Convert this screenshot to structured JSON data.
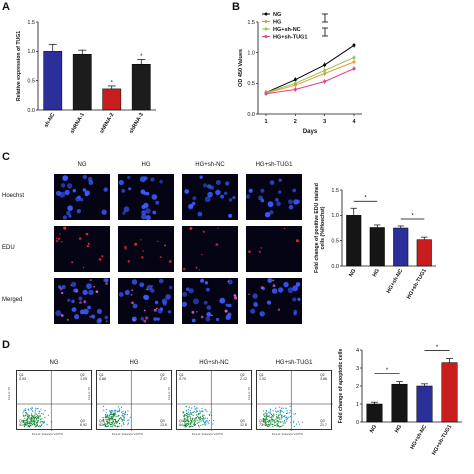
{
  "panels": {
    "a": "A",
    "b": "B",
    "c": "C",
    "d": "D"
  },
  "chart_data": [
    {
      "id": "A",
      "type": "bar",
      "categories": [
        "sh-NC",
        "shRNA-1",
        "shRNA-2",
        "shRNA-3"
      ],
      "values": [
        1.0,
        0.95,
        0.36,
        0.78
      ],
      "errors": [
        0.12,
        0.07,
        0.05,
        0.08
      ],
      "colors": [
        "#2b2f9a",
        "#1c1c1c",
        "#c81d1d",
        "#1c1c1c"
      ],
      "significance": [
        "",
        "",
        "*",
        "*"
      ],
      "title": "",
      "xlabel": "",
      "ylabel": "Relative expression of TUG1",
      "ylim": [
        0,
        1.5
      ],
      "yticks": [
        "0.0",
        "0.5",
        "1.0",
        "1.5"
      ]
    },
    {
      "id": "B",
      "type": "line",
      "categories": [
        "1",
        "2",
        "3",
        "4"
      ],
      "series": [
        {
          "name": "NG",
          "values": [
            0.35,
            0.56,
            0.8,
            1.12
          ],
          "color": "#000000"
        },
        {
          "name": "HG",
          "values": [
            0.34,
            0.47,
            0.66,
            0.85
          ],
          "color": "#e89a33"
        },
        {
          "name": "HG+sh-NC",
          "values": [
            0.35,
            0.5,
            0.71,
            0.92
          ],
          "color": "#8fc34f"
        },
        {
          "name": "HG+sh-TUG1",
          "values": [
            0.33,
            0.4,
            0.53,
            0.74
          ],
          "color": "#e5408b"
        }
      ],
      "xlabel": "Days",
      "ylabel": "OD 450 Values",
      "ylim": [
        0,
        1.5
      ],
      "yticks": [
        "0.0",
        "0.5",
        "1.0",
        "1.5"
      ],
      "legend": "top-left"
    },
    {
      "id": "C",
      "type": "bar",
      "categories": [
        "NG",
        "HG",
        "HG+sh-NC",
        "HG+sh-TUG1"
      ],
      "values": [
        1.0,
        0.76,
        0.75,
        0.52
      ],
      "errors": [
        0.14,
        0.05,
        0.04,
        0.05
      ],
      "colors": [
        "#151515",
        "#151515",
        "#2b2f9a",
        "#c81d1d"
      ],
      "brackets": [
        {
          "from": 0,
          "to": 1,
          "label": "*"
        },
        {
          "from": 2,
          "to": 3,
          "label": "*"
        }
      ],
      "ylabel": "Fold change of positive EDU stained cells (%/Hoechst)",
      "ylim": [
        0,
        1.5
      ],
      "yticks": [
        "0.0",
        "0.5",
        "1.0",
        "1.5"
      ]
    },
    {
      "id": "D",
      "type": "bar",
      "categories": [
        "NG",
        "HG",
        "HG+sh-NC",
        "HG+sh-TUG1"
      ],
      "values": [
        1.0,
        2.1,
        2.0,
        3.3
      ],
      "errors": [
        0.1,
        0.14,
        0.12,
        0.22
      ],
      "colors": [
        "#151515",
        "#151515",
        "#2b2f9a",
        "#c81d1d"
      ],
      "brackets": [
        {
          "from": 0,
          "to": 1,
          "label": "*"
        },
        {
          "from": 2,
          "to": 3,
          "label": "*"
        }
      ],
      "ylabel": "Fold change of apoptotic cells",
      "ylim": [
        0,
        4
      ],
      "yticks": [
        "0",
        "1",
        "2",
        "3",
        "4"
      ]
    }
  ],
  "microscopy": {
    "columns": [
      "NG",
      "HG",
      "HG+sh-NC",
      "HG+sh-TUG1"
    ],
    "rows": [
      {
        "label": "Hoechst",
        "stain": "hoechst"
      },
      {
        "label": "EDU",
        "stain": "edu"
      },
      {
        "label": "Merged",
        "stain": "merged"
      }
    ],
    "colors": {
      "hoechst": "#3c5bff",
      "edu": "#ff2a2a",
      "background": "#040414"
    }
  },
  "flow": {
    "columns": [
      "NG",
      "HG",
      "HG+sh-NC",
      "HG+sh-TUG1"
    ],
    "x_axis": "FL1-A::Annexin V-FITC",
    "y_axis": "FL2-A::PI",
    "quadrants": [
      {
        "tl": "Q1\n0.53",
        "tr": "Q2\n1.05",
        "bl": "Q4\n91.5",
        "br": "Q3\n6.92"
      },
      {
        "tl": "Q1\n0.88",
        "tr": "Q2\n2.37",
        "bl": "Q4\n83.1",
        "br": "Q3\n13.6"
      },
      {
        "tl": "Q1\n0.79",
        "tr": "Q2\n2.12",
        "bl": "Q4\n84.3",
        "br": "Q3\n12.8"
      },
      {
        "tl": "Q1\n1.02",
        "tr": "Q2\n3.86",
        "bl": "Q4\n73.4",
        "br": "Q3\n21.7"
      }
    ],
    "colors": {
      "dense": "#1a8a3a",
      "mid": "#1e90c8",
      "sparse": "#4a7fd0"
    }
  }
}
